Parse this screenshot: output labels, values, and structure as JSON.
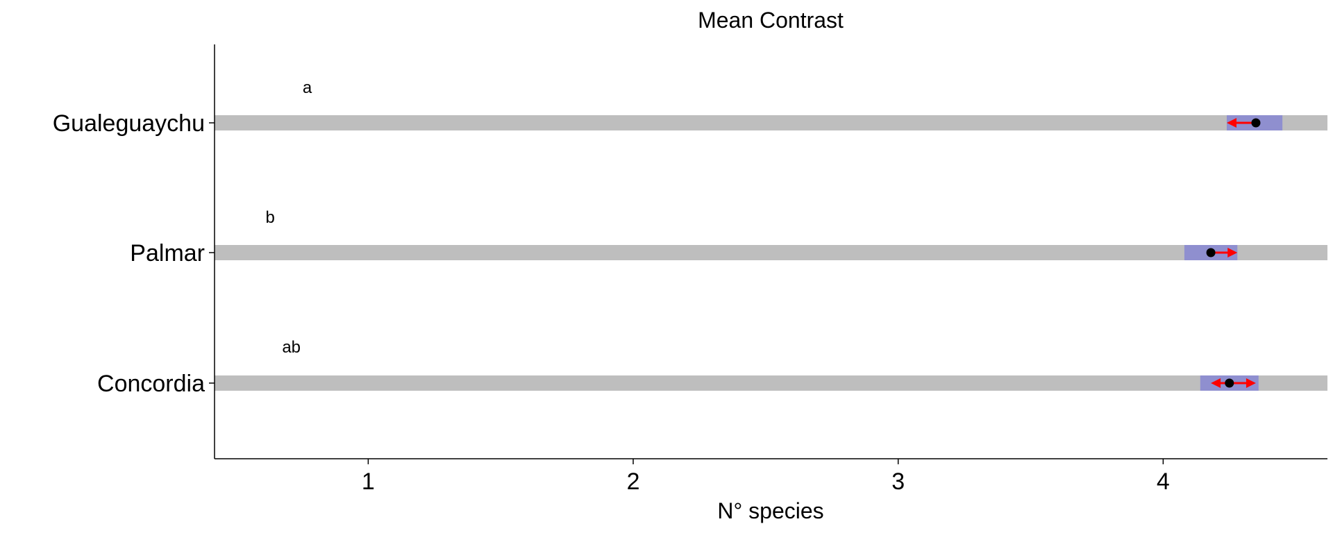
{
  "chart_data": {
    "type": "interval",
    "title": "Mean Contrast",
    "xlabel": "N° species",
    "ylabel": "",
    "xlim": [
      0.42,
      4.62
    ],
    "xticks": [
      1,
      2,
      3,
      4
    ],
    "xtick_labels": [
      "1",
      "2",
      "3",
      "4"
    ],
    "categories": [
      "Gualeguaychu",
      "Palmar",
      "Concordia"
    ],
    "letters": [
      "a",
      "b",
      "ab"
    ],
    "series": [
      {
        "category": "Gualeguaychu",
        "ci_low": 4.24,
        "ci_high": 4.45,
        "mean": 4.35,
        "arrow_to": 4.24
      },
      {
        "category": "Palmar",
        "ci_low": 4.08,
        "ci_high": 4.28,
        "mean": 4.18,
        "arrow_to": 4.28
      },
      {
        "category": "Concordia",
        "ci_low": 4.14,
        "ci_high": 4.36,
        "mean": 4.25,
        "arrow_from": 4.18,
        "arrow_to": 4.35
      }
    ],
    "colors": {
      "track": "#bebebe",
      "ci": "#8f8fcf",
      "arrow": "#ff0000",
      "point": "#000000"
    },
    "grid": false,
    "legend": "none"
  }
}
